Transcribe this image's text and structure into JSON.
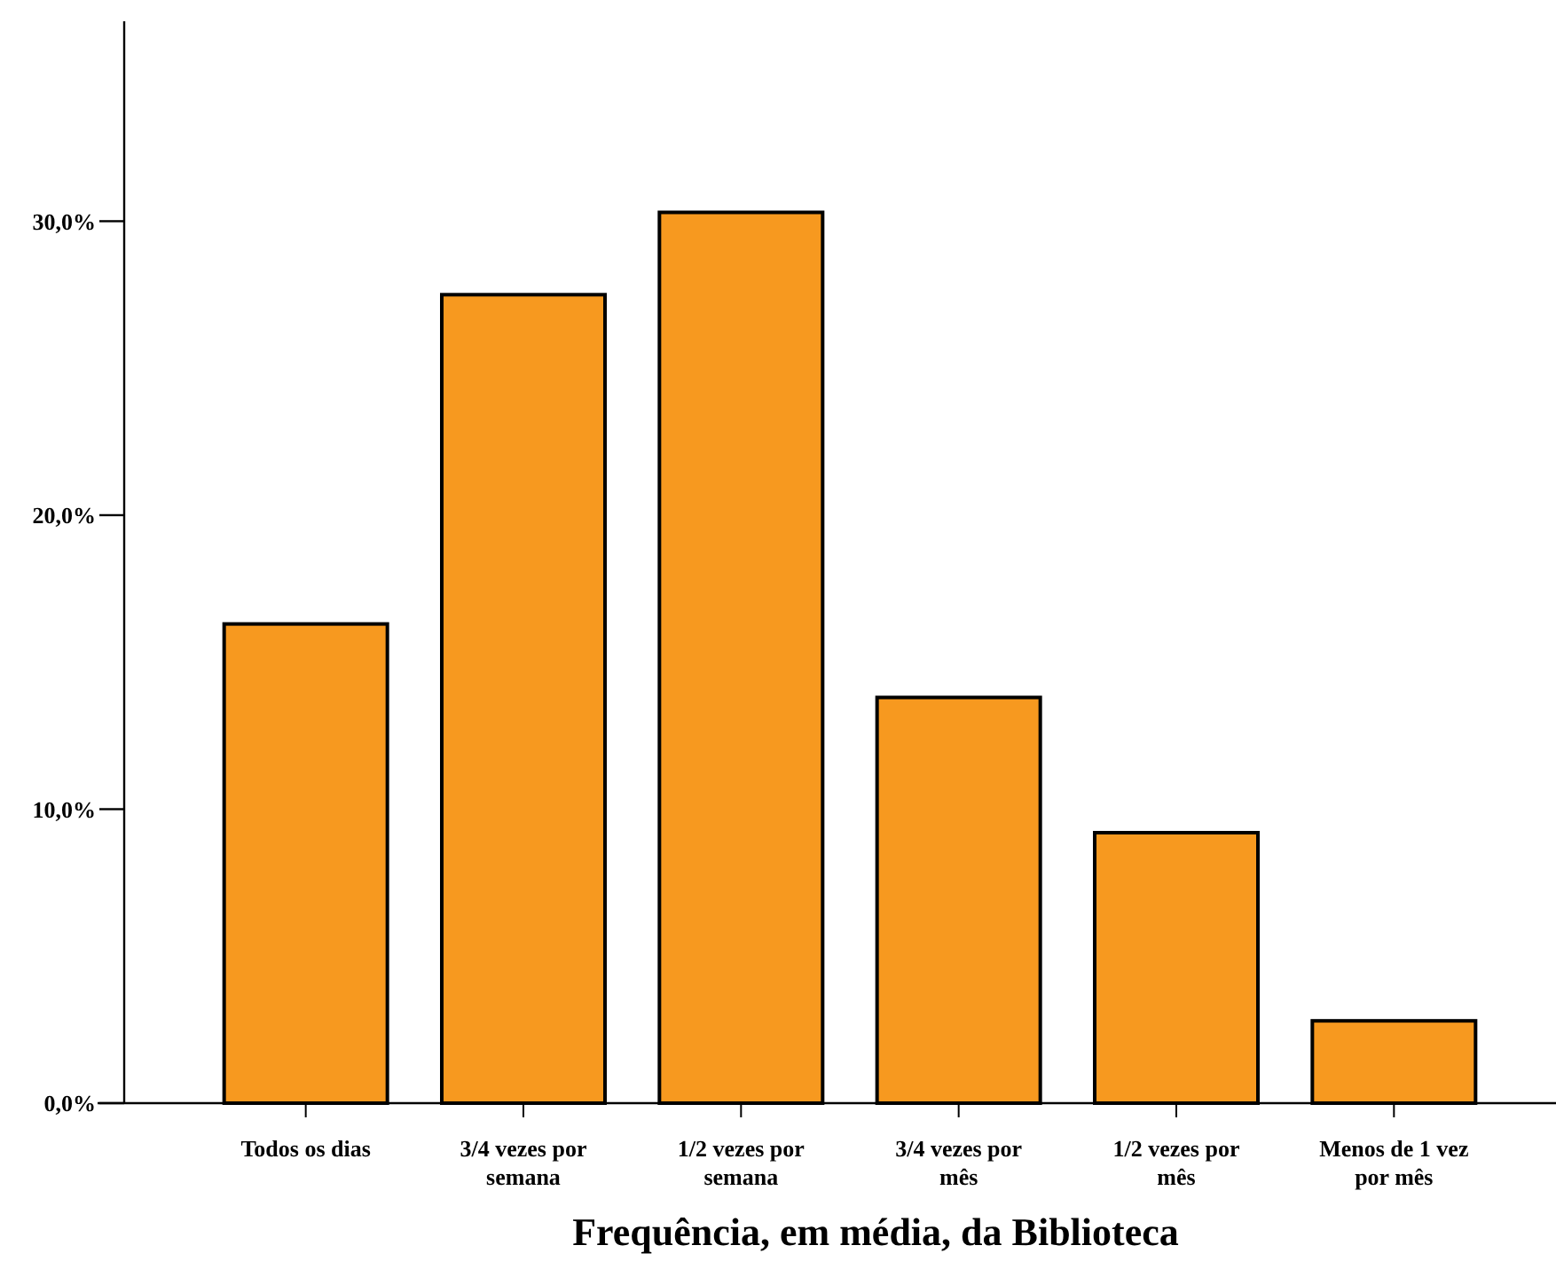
{
  "chart_data": {
    "type": "bar",
    "xlabel": "Frequência, em média, da Biblioteca",
    "categories": [
      "Todos os dias",
      "3/4 vezes por semana",
      "1/2 vezes por semana",
      "3/4 vezes por mês",
      "1/2 vezes por mês",
      "Menos de 1 vez por mês"
    ],
    "values": [
      16.3,
      27.5,
      30.3,
      13.8,
      9.2,
      2.8
    ],
    "color": "#f7991f",
    "ylim": [
      0,
      36.8
    ],
    "yticks": [
      {
        "value": 0,
        "label": "0,0%"
      },
      {
        "value": 10,
        "label": "10,0%"
      },
      {
        "value": 20,
        "label": "20,0%"
      },
      {
        "value": 30,
        "label": "30,0%"
      }
    ],
    "grid": false
  }
}
